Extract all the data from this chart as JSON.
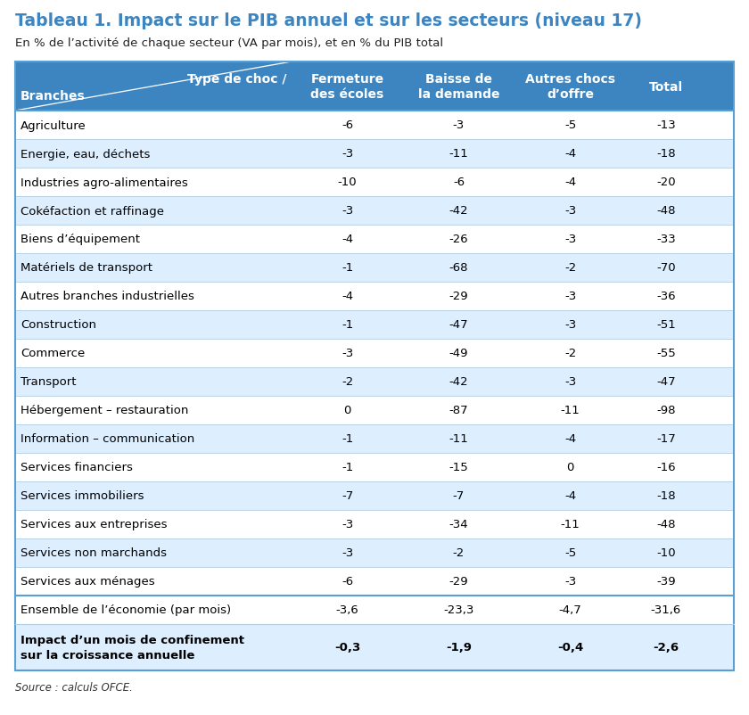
{
  "title": "Tableau 1. Impact sur le PIB annuel et sur les secteurs (niveau 17)",
  "subtitle": "En % de l’activité de chaque secteur (VA par mois), et en % du PIB total",
  "source": "Source : calculs OFCE.",
  "rows": [
    [
      "Agriculture",
      "-6",
      "-3",
      "-5",
      "-13"
    ],
    [
      "Energie, eau, déchets",
      "-3",
      "-11",
      "-4",
      "-18"
    ],
    [
      "Industries agro-alimentaires",
      "-10",
      "-6",
      "-4",
      "-20"
    ],
    [
      "Cokéfaction et raffinage",
      "-3",
      "-42",
      "-3",
      "-48"
    ],
    [
      "Biens d’équipement",
      "-4",
      "-26",
      "-3",
      "-33"
    ],
    [
      "Matériels de transport",
      "-1",
      "-68",
      "-2",
      "-70"
    ],
    [
      "Autres branches industrielles",
      "-4",
      "-29",
      "-3",
      "-36"
    ],
    [
      "Construction",
      "-1",
      "-47",
      "-3",
      "-51"
    ],
    [
      "Commerce",
      "-3",
      "-49",
      "-2",
      "-55"
    ],
    [
      "Transport",
      "-2",
      "-42",
      "-3",
      "-47"
    ],
    [
      "Hébergement – restauration",
      "0",
      "-87",
      "-11",
      "-98"
    ],
    [
      "Information – communication",
      "-1",
      "-11",
      "-4",
      "-17"
    ],
    [
      "Services financiers",
      "-1",
      "-15",
      "0",
      "-16"
    ],
    [
      "Services immobiliers",
      "-7",
      "-7",
      "-4",
      "-18"
    ],
    [
      "Services aux entreprises",
      "-3",
      "-34",
      "-11",
      "-48"
    ],
    [
      "Services non marchands",
      "-3",
      "-2",
      "-5",
      "-10"
    ],
    [
      "Services aux ménages",
      "-6",
      "-29",
      "-3",
      "-39"
    ]
  ],
  "summary_row": [
    "Ensemble de l’économie (par mois)",
    "-3,6",
    "-23,3",
    "-4,7",
    "-31,6"
  ],
  "impact_row_label": "Impact d’un mois de confinement\nsur la croissance annuelle",
  "impact_row_data": [
    "-0,3",
    "-1,9",
    "-0,4",
    "-2,6"
  ],
  "header_bg": "#3d85c0",
  "header_text_color": "#ffffff",
  "alt_row_bg": "#ddeeff",
  "white_row_bg": "#ffffff",
  "impact_bg": "#ddeeff",
  "border_color": "#5a9fd4",
  "title_color": "#3d85c0",
  "text_color": "#000000"
}
